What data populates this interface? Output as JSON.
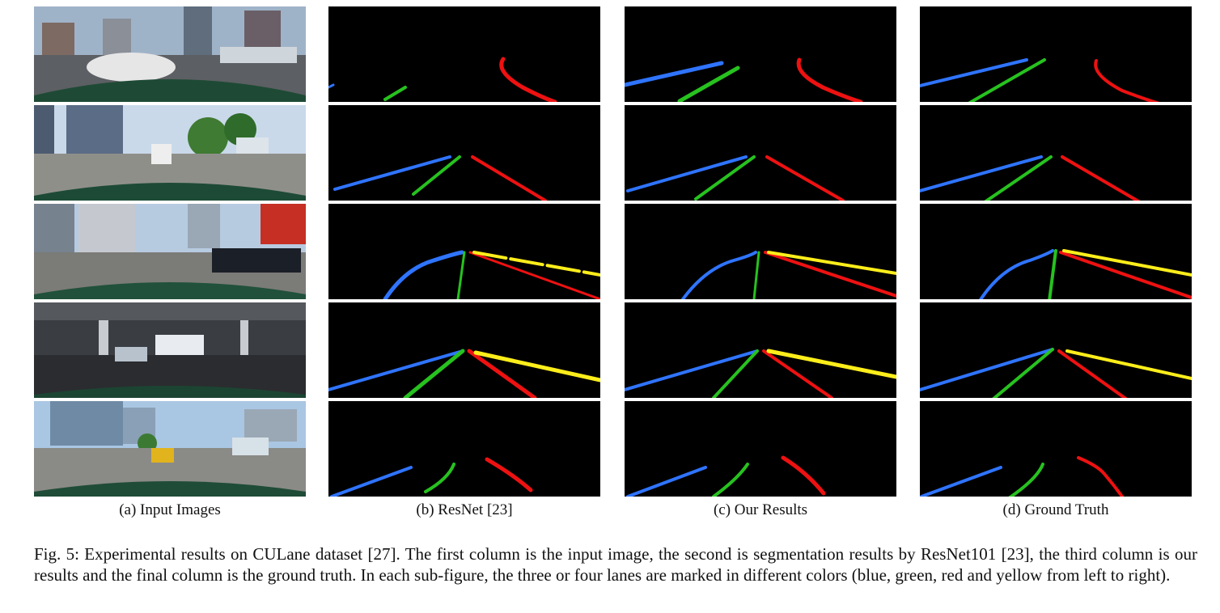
{
  "figure": {
    "columns": [
      {
        "label": "(a) Input Images"
      },
      {
        "label": "(b) ResNet [23]"
      },
      {
        "label": "(c) Our Results"
      },
      {
        "label": "(d) Ground Truth"
      }
    ],
    "caption": "Fig. 5: Experimental results on CULane dataset [27]. The first column is the input image, the second is segmentation results by ResNet101 [23], the third column is our results and the final column is the ground truth. In each sub-figure, the three or four lanes are marked in different colors (blue, green, red and yellow from left to right).",
    "lane_colors": {
      "blue": "#2f74ff",
      "green": "#27c21f",
      "red": "#ee1111",
      "yellow": "#ffee1a"
    }
  }
}
